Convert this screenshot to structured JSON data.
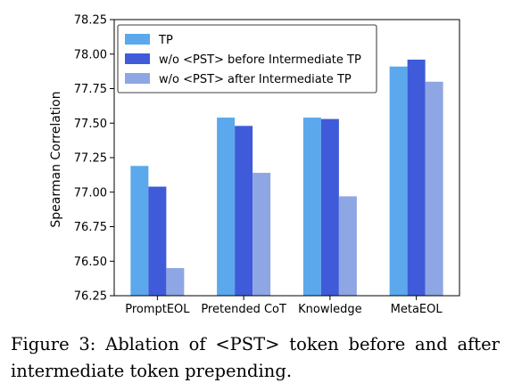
{
  "chart_data": {
    "type": "bar",
    "categories": [
      "PromptEOL",
      "Pretended CoT",
      "Knowledge",
      "MetaEOL"
    ],
    "series": [
      {
        "name": "TP",
        "values": [
          77.19,
          77.54,
          77.54,
          77.91
        ],
        "color": "#5ba8ec"
      },
      {
        "name": "w/o <PST> before Intermediate TP",
        "values": [
          77.04,
          77.48,
          77.53,
          77.96
        ],
        "color": "#3f5bd9"
      },
      {
        "name": "w/o <PST> after Intermediate TP",
        "values": [
          76.45,
          77.14,
          76.97,
          77.8
        ],
        "color": "#8ea6e3"
      }
    ],
    "ylabel": "Spearman Correlation",
    "ylim": [
      76.25,
      78.25
    ],
    "yticks": [
      "76.25",
      "76.50",
      "76.75",
      "77.00",
      "77.25",
      "77.50",
      "77.75",
      "78.00",
      "78.25"
    ],
    "legend": "top-left",
    "grid": false
  },
  "caption": "Figure 3:  Ablation of <PST> token before and after intermediate token prepending."
}
